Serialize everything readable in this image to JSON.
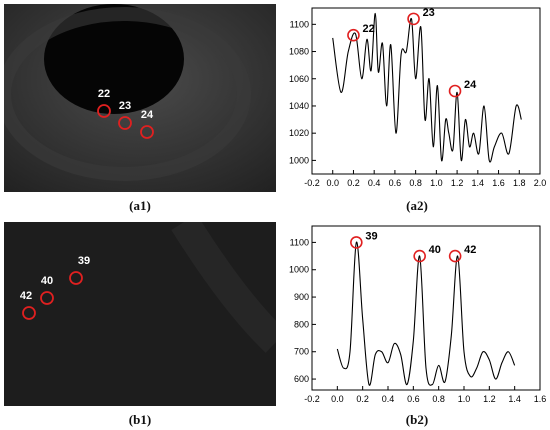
{
  "captions": {
    "a1": "(a1)",
    "a2": "(a2)",
    "b1": "(b1)",
    "b2": "(b2)"
  },
  "marker_color": "#e02020",
  "image_a1": {
    "markers": [
      "22",
      "23",
      "24"
    ]
  },
  "image_b1": {
    "markers": [
      "39",
      "40",
      "42"
    ]
  },
  "chart_data": [
    {
      "type": "line",
      "panel": "a2",
      "xlim": [
        -0.2,
        2.0
      ],
      "ylim": [
        990,
        1112
      ],
      "x_ticks": [
        "-0.2",
        "0.0",
        "0.2",
        "0.4",
        "0.6",
        "0.8",
        "1.0",
        "1.2",
        "1.4",
        "1.6",
        "1.8",
        "2.0"
      ],
      "y_ticks": [
        "1000",
        "1020",
        "1040",
        "1060",
        "1080",
        "1100"
      ],
      "series": [
        {
          "x": [
            0.0,
            0.08,
            0.15,
            0.22,
            0.28,
            0.33,
            0.37,
            0.41,
            0.44,
            0.48,
            0.52,
            0.56,
            0.61,
            0.66,
            0.71,
            0.76,
            0.8,
            0.85,
            0.89,
            0.93,
            0.97,
            1.01,
            1.05,
            1.09,
            1.12,
            1.16,
            1.2,
            1.24,
            1.28,
            1.32,
            1.36,
            1.41,
            1.46,
            1.51,
            1.56,
            1.63,
            1.7,
            1.77,
            1.82
          ],
          "values": [
            1090,
            1050,
            1080,
            1093,
            1060,
            1089,
            1066,
            1108,
            1065,
            1086,
            1040,
            1085,
            1020,
            1078,
            1080,
            1104,
            1060,
            1098,
            1030,
            1060,
            1010,
            1055,
            1000,
            1030,
            1020,
            1008,
            1050,
            1000,
            1030,
            1010,
            1020,
            1005,
            1040,
            1000,
            1010,
            1020,
            1005,
            1040,
            1030
          ]
        }
      ],
      "annotations": [
        {
          "label": "22",
          "x": 0.2,
          "y": 1092
        },
        {
          "label": "23",
          "x": 0.78,
          "y": 1104
        },
        {
          "label": "24",
          "x": 1.18,
          "y": 1051
        }
      ]
    },
    {
      "type": "line",
      "panel": "b2",
      "xlim": [
        -0.2,
        1.6
      ],
      "ylim": [
        560,
        1160
      ],
      "x_ticks": [
        "-0.2",
        "0.0",
        "0.2",
        "0.4",
        "0.6",
        "0.8",
        "1.0",
        "1.2",
        "1.4",
        "1.6"
      ],
      "y_ticks": [
        "600",
        "700",
        "800",
        "900",
        "1000",
        "1100"
      ],
      "series": [
        {
          "x": [
            0.0,
            0.05,
            0.1,
            0.15,
            0.2,
            0.25,
            0.3,
            0.35,
            0.4,
            0.45,
            0.5,
            0.55,
            0.6,
            0.65,
            0.7,
            0.75,
            0.8,
            0.85,
            0.9,
            0.95,
            1.0,
            1.05,
            1.1,
            1.15,
            1.2,
            1.25,
            1.3,
            1.35,
            1.4
          ],
          "values": [
            710,
            640,
            700,
            1100,
            820,
            580,
            690,
            700,
            660,
            730,
            690,
            580,
            740,
            1050,
            640,
            580,
            650,
            590,
            760,
            1050,
            700,
            610,
            640,
            700,
            670,
            600,
            660,
            700,
            650
          ]
        }
      ],
      "annotations": [
        {
          "label": "39",
          "x": 0.15,
          "y": 1100
        },
        {
          "label": "40",
          "x": 0.65,
          "y": 1050
        },
        {
          "label": "42",
          "x": 0.93,
          "y": 1050
        }
      ]
    }
  ]
}
